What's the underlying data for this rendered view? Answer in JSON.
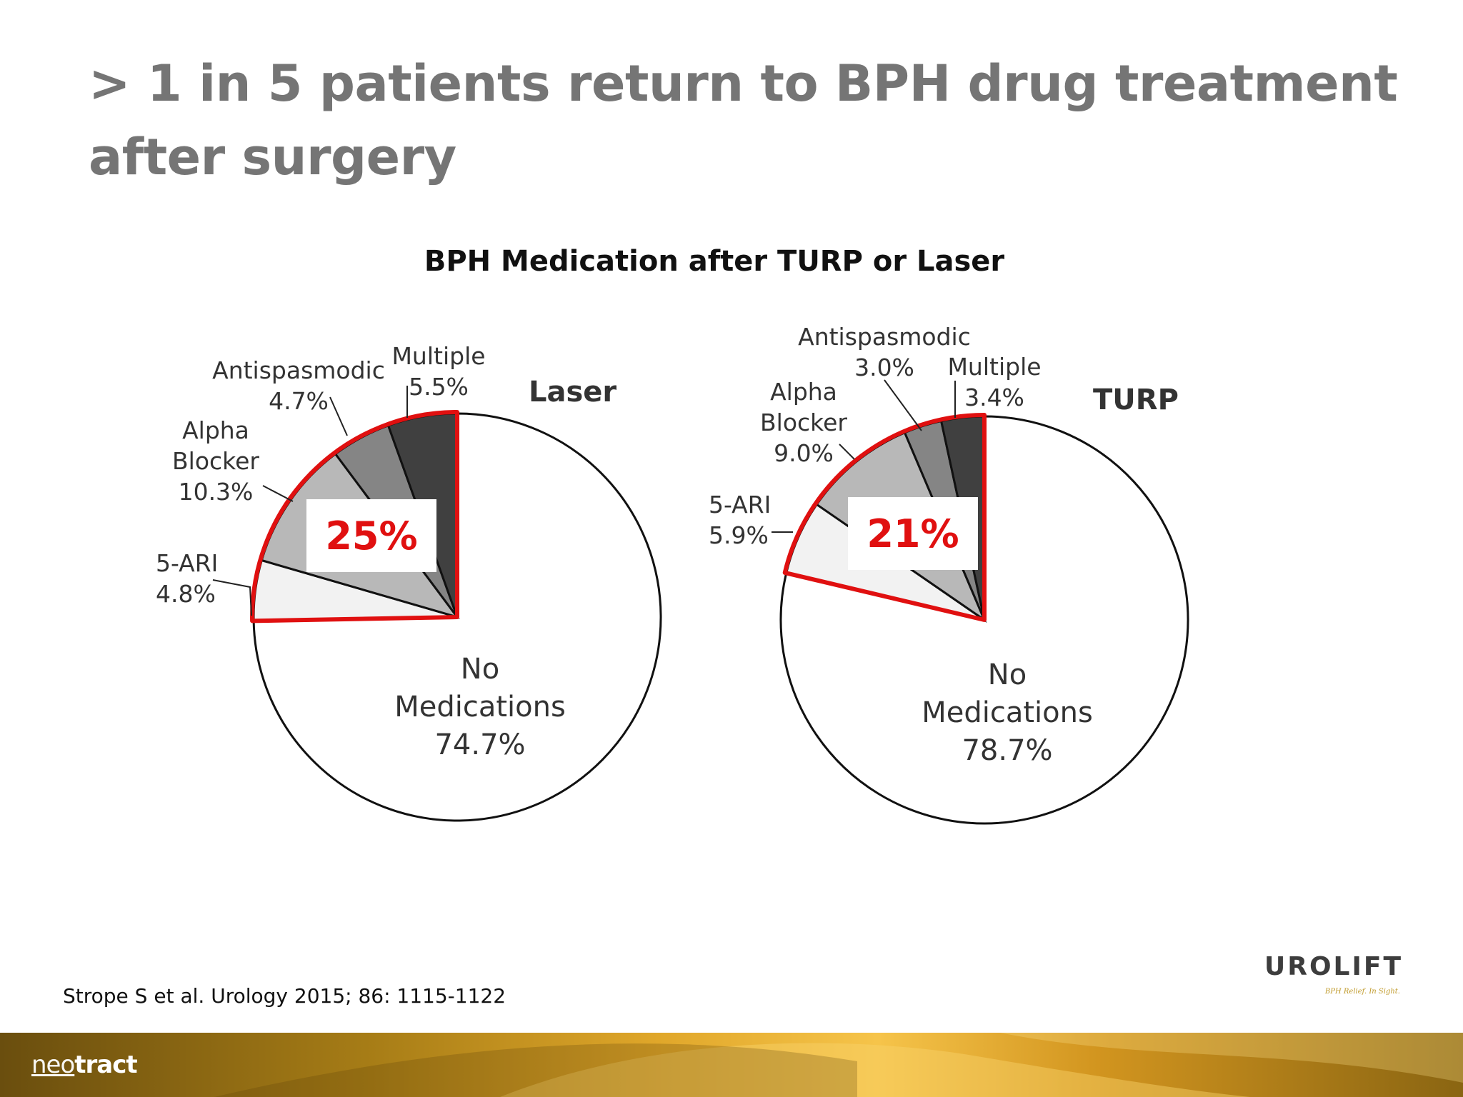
{
  "slide": {
    "title_lines": [
      "> 1 in 5 patients return to BPH drug treatment",
      "after surgery"
    ],
    "chart_heading": "BPH Medication after TURP or Laser",
    "citation": "Strope S et al. Urology 2015; 86: 1115-1122",
    "urolift_logo": {
      "word": "UROLIFT",
      "tagline": "BPH Relief. In Sight."
    },
    "neotract_logo": {
      "prefix": "neo",
      "suffix": "tract"
    },
    "colors": {
      "title": "#757575",
      "highlight": "#e01010",
      "slice_fills": [
        "#f2f2f2",
        "#b8b8b8",
        "#858585",
        "#404040",
        "#ffffff"
      ],
      "footer_band": "#d9a22a"
    }
  },
  "chart_data": [
    {
      "type": "pie",
      "title": "Laser",
      "slices": [
        {
          "label": "No Medications",
          "label_lines": [
            "No",
            "Medications"
          ],
          "value": 74.7,
          "value_text": "74.7%"
        },
        {
          "label": "5-ARI",
          "label_lines": [
            "5-ARI"
          ],
          "value": 4.8,
          "value_text": "4.8%"
        },
        {
          "label": "Alpha Blocker",
          "label_lines": [
            "Alpha",
            "Blocker"
          ],
          "value": 10.3,
          "value_text": "10.3%"
        },
        {
          "label": "Antispasmodic",
          "label_lines": [
            "Antispasmodic"
          ],
          "value": 4.7,
          "value_text": "4.7%"
        },
        {
          "label": "Multiple",
          "label_lines": [
            "Multiple"
          ],
          "value": 5.5,
          "value_text": "5.5%"
        }
      ],
      "highlight_text": "25%"
    },
    {
      "type": "pie",
      "title": "TURP",
      "slices": [
        {
          "label": "No Medications",
          "label_lines": [
            "No",
            "Medications"
          ],
          "value": 78.7,
          "value_text": "78.7%"
        },
        {
          "label": "5-ARI",
          "label_lines": [
            "5-ARI"
          ],
          "value": 5.9,
          "value_text": "5.9%"
        },
        {
          "label": "Alpha Blocker",
          "label_lines": [
            "Alpha",
            "Blocker"
          ],
          "value": 9.0,
          "value_text": "9.0%"
        },
        {
          "label": "Antispasmodic",
          "label_lines": [
            "Antispasmodic"
          ],
          "value": 3.0,
          "value_text": "3.0%"
        },
        {
          "label": "Multiple",
          "label_lines": [
            "Multiple"
          ],
          "value": 3.4,
          "value_text": "3.4%"
        }
      ],
      "highlight_text": "21%"
    }
  ]
}
